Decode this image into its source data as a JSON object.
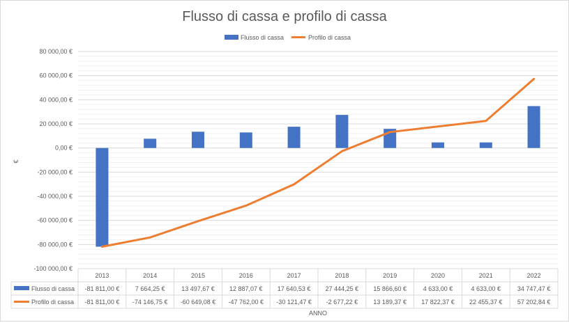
{
  "chart_data": {
    "type": "bar",
    "title": "Flusso di cassa e profilo di cassa",
    "xlabel": "ANNO",
    "ylabel": "€",
    "ylim": [
      -100000,
      80000
    ],
    "ytick_labels": [
      "80 000,00 €",
      "60 000,00 €",
      "40 000,00 €",
      "20 000,00 €",
      "0,00 €",
      "-20 000,00 €",
      "-40 000,00 €",
      "-60 000,00 €",
      "-80 000,00 €",
      "-100 000,00 €"
    ],
    "ytick_values": [
      80000,
      60000,
      40000,
      20000,
      0,
      -20000,
      -40000,
      -60000,
      -80000,
      -100000
    ],
    "categories": [
      "2013",
      "2014",
      "2015",
      "2016",
      "2017",
      "2018",
      "2019",
      "2020",
      "2021",
      "2022"
    ],
    "grid": true,
    "legend": "top",
    "data_table": true,
    "series": [
      {
        "name": "Flusso di cassa",
        "type": "bar",
        "color": "#4472C4",
        "values": [
          -81811.0,
          7664.25,
          13497.67,
          12887.07,
          17640.53,
          27444.25,
          15866.6,
          4633.0,
          4633.0,
          34747.47
        ],
        "value_labels": [
          "-81 811,00 €",
          "7 664,25 €",
          "13 497,67 €",
          "12 887,07 €",
          "17 640,53 €",
          "27 444,25 €",
          "15 866,60 €",
          "4 633,00 €",
          "4 633,00 €",
          "34 747,47 €"
        ]
      },
      {
        "name": "Profilo di cassa",
        "type": "line",
        "color": "#ED7D31",
        "values": [
          -81811.0,
          -74146.75,
          -60649.08,
          -47762.0,
          -30121.47,
          -2677.22,
          13189.37,
          17822.37,
          22455.37,
          57202.84
        ],
        "value_labels": [
          "-81 811,00 €",
          "-74 146,75 €",
          "-60 649,08 €",
          "-47 762,00 €",
          "-30 121,47 €",
          "-2 677,22 €",
          "13 189,37 €",
          "17 822,37 €",
          "22 455,37 €",
          "57 202,84 €"
        ]
      }
    ]
  }
}
